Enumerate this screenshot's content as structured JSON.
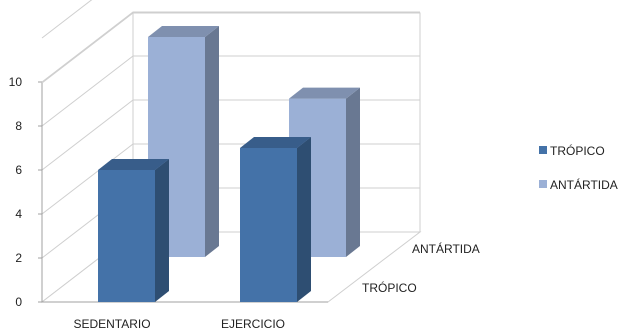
{
  "chart_data": {
    "type": "bar",
    "variant": "3d-column",
    "categories": [
      "SEDENTARIO",
      "EJERCICIO"
    ],
    "series": [
      {
        "name": "TRÓPICO",
        "values": [
          6,
          7
        ],
        "color": "#4472A8"
      },
      {
        "name": "ANTÁRTIDA",
        "values": [
          10,
          7.2
        ],
        "color": "#9BB0D6"
      }
    ],
    "depth_labels": [
      "ANTÁRTIDA",
      "TRÓPICO"
    ],
    "y_ticks": [
      "0",
      "2",
      "4",
      "6",
      "8",
      "10"
    ],
    "ylim": [
      0,
      12
    ],
    "grid": true,
    "legend_position": "right"
  }
}
